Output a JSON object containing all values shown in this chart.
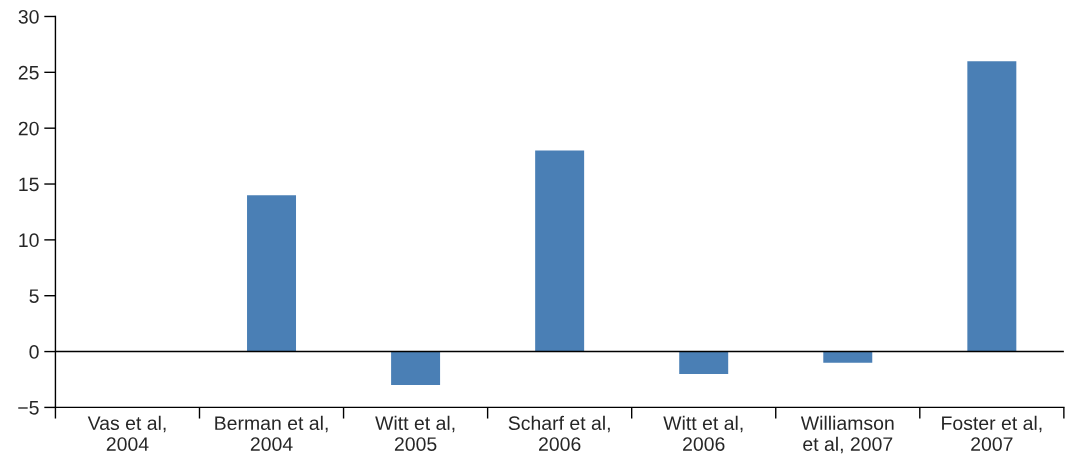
{
  "chart_data": {
    "type": "bar",
    "categories": [
      "Vas et al,\n2004",
      "Berman et al,\n2004",
      "Witt et al,\n2005",
      "Scharf et al,\n2006",
      "Witt et al,\n2006",
      "Williamson\net al, 2007",
      "Foster et al,\n2007"
    ],
    "values": [
      0,
      14,
      -3,
      18,
      -2,
      -1,
      26
    ],
    "color": "#4a7fb5",
    "ylim": [
      -5,
      30
    ],
    "yticks": [
      {
        "value": -5,
        "label": "−5"
      },
      0,
      5,
      10,
      15,
      20,
      25,
      30
    ],
    "ref_lines": [
      {
        "axis": "y",
        "value": 0,
        "color": "#000000"
      }
    ],
    "grid": false,
    "legend": false
  }
}
